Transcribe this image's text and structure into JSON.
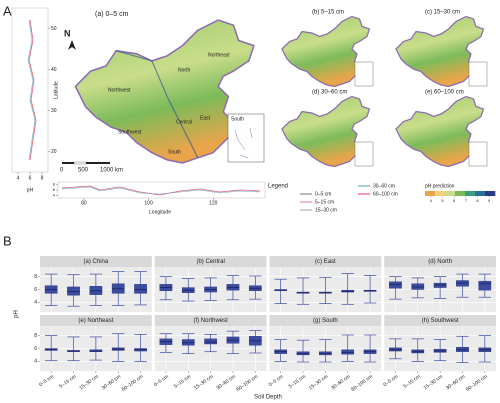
{
  "maps": {
    "panel_label": "A",
    "main_title": "(a) 0–5 cm",
    "north": "N",
    "regions": [
      "Northeast",
      "North",
      "Northwest",
      "Central",
      "East",
      "Southwest",
      "South"
    ],
    "inset_label": "South",
    "scale_labels": [
      "0",
      "500",
      "1000 km"
    ],
    "small_titles": [
      "(b) 5–15 cm",
      "(c) 15–30 cm",
      "(d) 30–60 cm",
      "(e) 60–100 cm"
    ],
    "legend": {
      "title": "Legend",
      "entries": [
        {
          "name": "0–5 cm",
          "color": "#8c8c8c"
        },
        {
          "name": "5–15 cm",
          "color": "#e58fb0"
        },
        {
          "name": "15–30 cm",
          "color": "#b0b0b0"
        },
        {
          "name": "30–60 cm",
          "color": "#6aa6c8"
        },
        {
          "name": "60–100 cm",
          "color": "#d9607a"
        }
      ]
    },
    "colorbar": {
      "title": "pH prediction",
      "lim": [
        3.5,
        9.5
      ],
      "ticks": [
        4,
        5,
        6,
        7,
        8,
        9
      ]
    },
    "lat_profile": {
      "xlabel": "pH",
      "ylabel": "Latitude",
      "xlim": [
        3,
        9
      ],
      "xticks": [
        4,
        6,
        8
      ],
      "ylim": [
        15,
        55
      ],
      "yticks": [
        20,
        30,
        40,
        50
      ]
    },
    "lon_profile": {
      "xlabel": "Longitude",
      "xlim": [
        72,
        136
      ],
      "xticks": [
        80,
        100,
        120
      ],
      "ylim": [
        3,
        9
      ],
      "yticks": [
        4,
        6,
        8
      ]
    }
  },
  "chart_data": {
    "type": "box",
    "panel_label": "B",
    "xlabel": "Soil Depth",
    "ylabel": "pH",
    "categories": [
      "0–5 cm",
      "5–15 cm",
      "15–30 cm",
      "30–60 cm",
      "60–100 cm"
    ],
    "ylim": [
      2.5,
      9.5
    ],
    "yticks": [
      4,
      6,
      8
    ],
    "color": "#3b4ba0",
    "grid": true,
    "facets": [
      {
        "title": "(a) China",
        "boxes": [
          {
            "min": 3.5,
            "q1": 5.4,
            "median": 6.0,
            "q3": 6.6,
            "max": 8.4
          },
          {
            "min": 3.4,
            "q1": 5.1,
            "median": 5.7,
            "q3": 6.4,
            "max": 8.3
          },
          {
            "min": 3.5,
            "q1": 5.2,
            "median": 5.8,
            "q3": 6.5,
            "max": 8.4
          },
          {
            "min": 3.5,
            "q1": 5.4,
            "median": 6.1,
            "q3": 6.9,
            "max": 8.8
          },
          {
            "min": 3.6,
            "q1": 5.4,
            "median": 6.0,
            "q3": 6.8,
            "max": 8.8
          }
        ]
      },
      {
        "title": "(b) Central",
        "boxes": [
          {
            "min": 4.4,
            "q1": 5.8,
            "median": 6.3,
            "q3": 6.8,
            "max": 8.0
          },
          {
            "min": 4.2,
            "q1": 5.5,
            "median": 5.9,
            "q3": 6.3,
            "max": 7.7
          },
          {
            "min": 4.3,
            "q1": 5.6,
            "median": 6.0,
            "q3": 6.4,
            "max": 7.8
          },
          {
            "min": 4.4,
            "q1": 5.9,
            "median": 6.3,
            "q3": 6.8,
            "max": 8.2
          },
          {
            "min": 4.5,
            "q1": 5.8,
            "median": 6.2,
            "q3": 6.6,
            "max": 8.1
          }
        ]
      },
      {
        "title": "(c) East",
        "boxes": [
          {
            "min": 3.8,
            "q1": 5.8,
            "median": 5.9,
            "q3": 6.0,
            "max": 7.6
          },
          {
            "min": 3.7,
            "q1": 5.4,
            "median": 5.5,
            "q3": 5.6,
            "max": 7.8
          },
          {
            "min": 3.8,
            "q1": 5.4,
            "median": 5.5,
            "q3": 5.6,
            "max": 7.9
          },
          {
            "min": 3.7,
            "q1": 5.6,
            "median": 5.7,
            "q3": 5.9,
            "max": 8.5
          },
          {
            "min": 3.9,
            "q1": 5.7,
            "median": 5.8,
            "q3": 5.9,
            "max": 8.2
          }
        ]
      },
      {
        "title": "(d) North",
        "boxes": [
          {
            "min": 4.5,
            "q1": 6.2,
            "median": 6.8,
            "q3": 7.2,
            "max": 8.0
          },
          {
            "min": 4.7,
            "q1": 6.0,
            "median": 6.4,
            "q3": 6.9,
            "max": 7.8
          },
          {
            "min": 4.6,
            "q1": 6.3,
            "median": 6.7,
            "q3": 7.0,
            "max": 8.0
          },
          {
            "min": 4.8,
            "q1": 6.5,
            "median": 7.0,
            "q3": 7.4,
            "max": 8.4
          },
          {
            "min": 4.8,
            "q1": 5.9,
            "median": 6.9,
            "q3": 7.3,
            "max": 8.4
          }
        ]
      },
      {
        "title": "(e) Northeast",
        "boxes": [
          {
            "min": 4.1,
            "q1": 5.7,
            "median": 5.8,
            "q3": 6.0,
            "max": 8.0
          },
          {
            "min": 4.1,
            "q1": 5.5,
            "median": 5.6,
            "q3": 5.7,
            "max": 7.8
          },
          {
            "min": 4.2,
            "q1": 5.5,
            "median": 5.6,
            "q3": 5.8,
            "max": 7.8
          },
          {
            "min": 4.0,
            "q1": 5.7,
            "median": 5.9,
            "q3": 6.1,
            "max": 8.3
          },
          {
            "min": 4.0,
            "q1": 5.6,
            "median": 5.8,
            "q3": 6.0,
            "max": 8.2
          }
        ]
      },
      {
        "title": "(f) Northwest",
        "boxes": [
          {
            "min": 5.4,
            "q1": 6.6,
            "median": 7.1,
            "q3": 7.5,
            "max": 8.3
          },
          {
            "min": 5.2,
            "q1": 6.5,
            "median": 6.9,
            "q3": 7.4,
            "max": 8.3
          },
          {
            "min": 5.5,
            "q1": 6.7,
            "median": 7.0,
            "q3": 7.5,
            "max": 8.2
          },
          {
            "min": 5.2,
            "q1": 6.8,
            "median": 7.3,
            "q3": 7.8,
            "max": 8.7
          },
          {
            "min": 5.3,
            "q1": 6.5,
            "median": 7.2,
            "q3": 7.9,
            "max": 8.8
          }
        ]
      },
      {
        "title": "(g) South",
        "boxes": [
          {
            "min": 4.0,
            "q1": 5.2,
            "median": 5.5,
            "q3": 5.8,
            "max": 7.4
          },
          {
            "min": 3.9,
            "q1": 5.0,
            "median": 5.2,
            "q3": 5.5,
            "max": 7.3
          },
          {
            "min": 3.9,
            "q1": 5.0,
            "median": 5.2,
            "q3": 5.5,
            "max": 7.4
          },
          {
            "min": 4.0,
            "q1": 5.1,
            "median": 5.4,
            "q3": 5.8,
            "max": 8.1
          },
          {
            "min": 3.9,
            "q1": 5.2,
            "median": 5.5,
            "q3": 5.8,
            "max": 8.1
          }
        ]
      },
      {
        "title": "(h) Southwest",
        "boxes": [
          {
            "min": 4.4,
            "q1": 5.6,
            "median": 5.8,
            "q3": 6.1,
            "max": 7.5
          },
          {
            "min": 4.0,
            "q1": 5.3,
            "median": 5.5,
            "q3": 5.8,
            "max": 7.5
          },
          {
            "min": 4.1,
            "q1": 5.4,
            "median": 5.6,
            "q3": 5.9,
            "max": 7.4
          },
          {
            "min": 3.8,
            "q1": 5.5,
            "median": 5.8,
            "q3": 6.2,
            "max": 7.9
          },
          {
            "min": 3.9,
            "q1": 5.5,
            "median": 5.8,
            "q3": 6.1,
            "max": 8.0
          }
        ]
      }
    ]
  }
}
